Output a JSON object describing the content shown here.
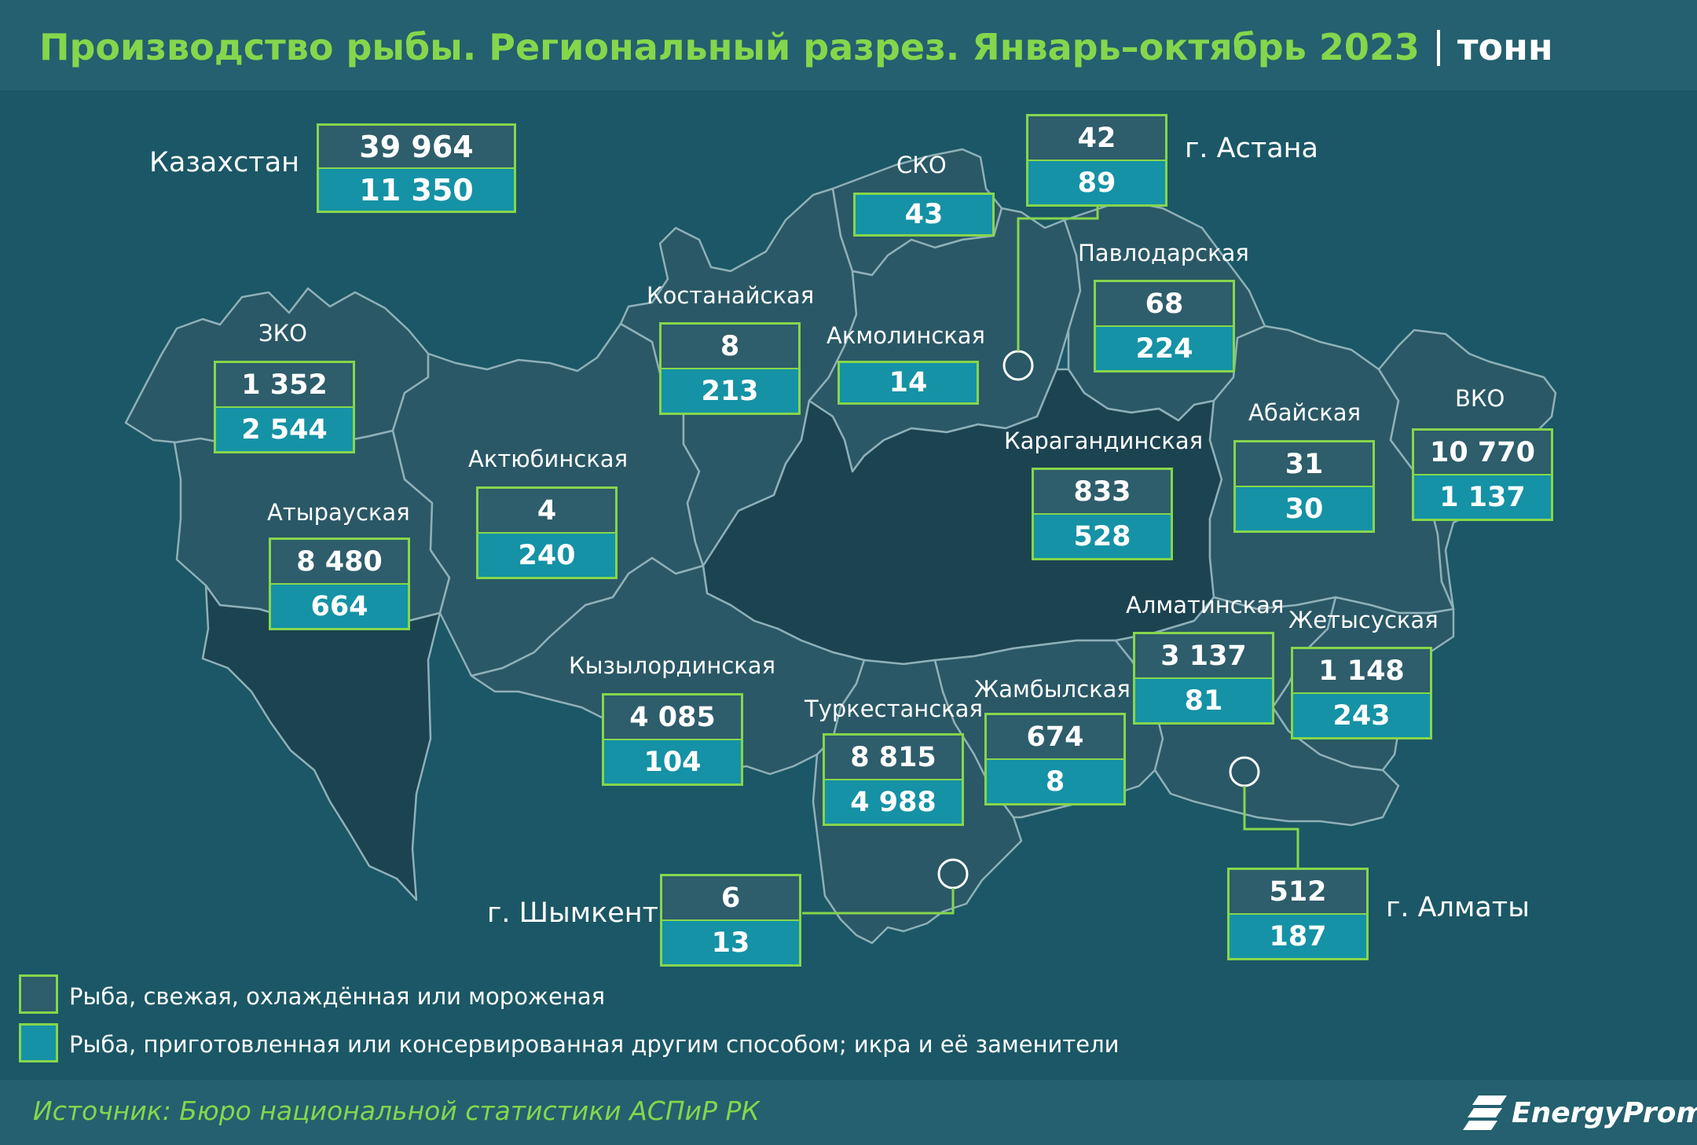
{
  "header": {
    "title": "Производство рыбы. Региональный разрез. Январь–октябрь 2023",
    "unit": "тонн"
  },
  "colors": {
    "accent": "#86d64c",
    "fresh_box": "#2e5d6b",
    "prepared_box": "#1592a5",
    "background": "#1b5766"
  },
  "total": {
    "label": "Казахстан",
    "fresh": "39 964",
    "prepared": "11 350"
  },
  "regions": [
    {
      "id": "zko",
      "label": "ЗКО",
      "fresh": "1 352",
      "prepared": "2 544"
    },
    {
      "id": "atyrau",
      "label": "Атырауская",
      "fresh": "8 480",
      "prepared": "664"
    },
    {
      "id": "aktobe",
      "label": "Актюбинская",
      "fresh": "4",
      "prepared": "240"
    },
    {
      "id": "kostanay",
      "label": "Костанайская",
      "fresh": "8",
      "prepared": "213"
    },
    {
      "id": "sko",
      "label": "СКО",
      "fresh": "",
      "prepared": "43"
    },
    {
      "id": "akmola",
      "label": "Акмолинская",
      "fresh": "",
      "prepared": "14"
    },
    {
      "id": "pavlodar",
      "label": "Павлодарская",
      "fresh": "68",
      "prepared": "224"
    },
    {
      "id": "karaganda",
      "label": "Карагандинская",
      "fresh": "833",
      "prepared": "528"
    },
    {
      "id": "abai",
      "label": "Абайская",
      "fresh": "31",
      "prepared": "30"
    },
    {
      "id": "vko",
      "label": "ВКО",
      "fresh": "10 770",
      "prepared": "1 137"
    },
    {
      "id": "kyzylorda",
      "label": "Кызылординская",
      "fresh": "4 085",
      "prepared": "104"
    },
    {
      "id": "turkestan",
      "label": "Туркестанская",
      "fresh": "8 815",
      "prepared": "4 988"
    },
    {
      "id": "zhambyl",
      "label": "Жамбылская",
      "fresh": "674",
      "prepared": "8"
    },
    {
      "id": "almaty_obl",
      "label": "Алматинская",
      "fresh": "3 137",
      "prepared": "81"
    },
    {
      "id": "zhetysu",
      "label": "Жетысуская",
      "fresh": "1 148",
      "prepared": "243"
    }
  ],
  "cities": [
    {
      "id": "astana",
      "label": "г. Астана",
      "fresh": "42",
      "prepared": "89"
    },
    {
      "id": "shymkent",
      "label": "г. Шымкент",
      "fresh": "6",
      "prepared": "13"
    },
    {
      "id": "almaty",
      "label": "г. Алматы",
      "fresh": "512",
      "prepared": "187"
    }
  ],
  "legend": {
    "fresh": "Рыба, свежая, охлаждённая или мороженая",
    "prepared": "Рыба, приготовленная или консервированная другим способом; икра и её заменители"
  },
  "footer": {
    "source": "Источник: Бюро национальной статистики АСПиР РК",
    "logo": "EnergyProm"
  }
}
